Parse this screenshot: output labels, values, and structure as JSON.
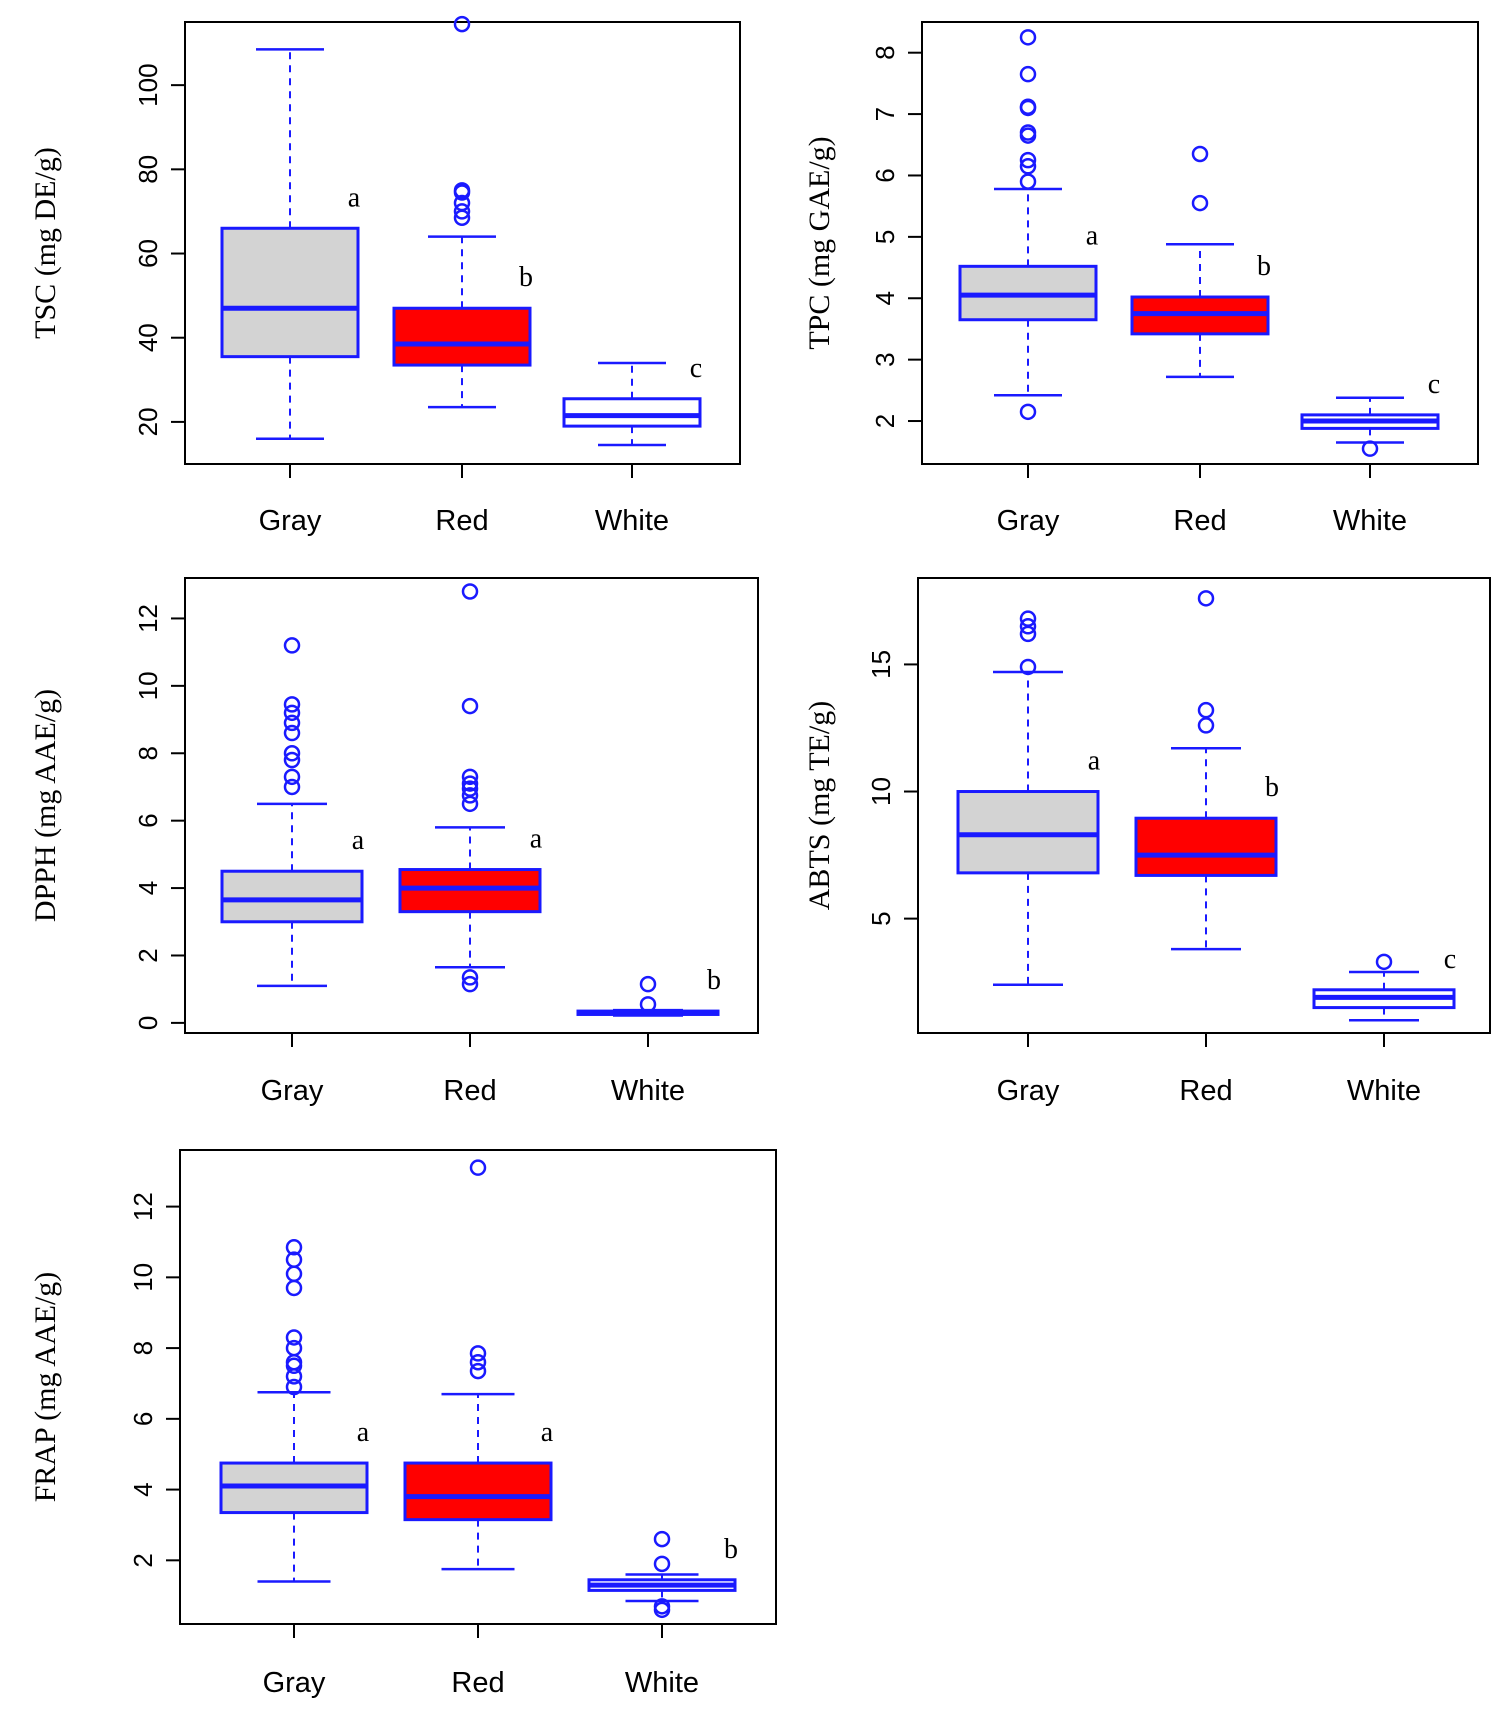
{
  "colors": {
    "stroke": "#1a1aff",
    "gray_fill": "#d3d3d3",
    "red_fill": "#ff0000",
    "white_fill": "#ffffff",
    "axis": "#000000"
  },
  "chart_data": [
    {
      "type": "box",
      "ylabel": "TSC (mg DE/g)",
      "categories": [
        "Gray",
        "Red",
        "White"
      ],
      "yticks": [
        20,
        40,
        60,
        80,
        100
      ],
      "ylim": [
        10,
        115
      ],
      "boxes": [
        {
          "category": "Gray",
          "fill": "#d3d3d3",
          "min": 16,
          "q1": 35.5,
          "median": 47,
          "q3": 66,
          "max": 108.5,
          "outliers": [],
          "letter": "a"
        },
        {
          "category": "Red",
          "fill": "#ff0000",
          "min": 23.5,
          "q1": 33.5,
          "median": 38.5,
          "q3": 47,
          "max": 64,
          "outliers": [
            68.5,
            70,
            72,
            74.5,
            75,
            114.5
          ],
          "letter": "b"
        },
        {
          "category": "White",
          "fill": "#ffffff",
          "min": 14.5,
          "q1": 19,
          "median": 21.5,
          "q3": 25.5,
          "max": 34,
          "outliers": [],
          "letter": "c"
        }
      ]
    },
    {
      "type": "box",
      "ylabel": "TPC (mg GAE/g)",
      "categories": [
        "Gray",
        "Red",
        "White"
      ],
      "yticks": [
        2,
        3,
        4,
        5,
        6,
        7,
        8
      ],
      "ylim": [
        1.3,
        8.5
      ],
      "boxes": [
        {
          "category": "Gray",
          "fill": "#d3d3d3",
          "min": 2.42,
          "q1": 3.65,
          "median": 4.05,
          "q3": 4.52,
          "max": 5.78,
          "outliers": [
            2.15,
            5.9,
            6.15,
            6.25,
            6.65,
            6.7,
            7.1,
            7.12,
            7.65,
            8.25
          ],
          "letter": "a"
        },
        {
          "category": "Red",
          "fill": "#ff0000",
          "min": 2.72,
          "q1": 3.42,
          "median": 3.75,
          "q3": 4.02,
          "max": 4.88,
          "outliers": [
            5.55,
            6.35
          ],
          "letter": "b"
        },
        {
          "category": "White",
          "fill": "#ffffff",
          "min": 1.65,
          "q1": 1.88,
          "median": 2.0,
          "q3": 2.1,
          "max": 2.38,
          "outliers": [
            1.55
          ],
          "letter": "c"
        }
      ]
    },
    {
      "type": "box",
      "ylabel": "DPPH (mg AAE/g)",
      "categories": [
        "Gray",
        "Red",
        "White"
      ],
      "yticks": [
        0,
        2,
        4,
        6,
        8,
        10,
        12
      ],
      "ylim": [
        -0.3,
        13.2
      ],
      "boxes": [
        {
          "category": "Gray",
          "fill": "#d3d3d3",
          "min": 1.1,
          "q1": 3.0,
          "median": 3.65,
          "q3": 4.5,
          "max": 6.5,
          "outliers": [
            7.0,
            7.3,
            7.8,
            8.0,
            8.6,
            8.9,
            9.2,
            9.45,
            11.2
          ],
          "letter": "a"
        },
        {
          "category": "Red",
          "fill": "#ff0000",
          "min": 1.65,
          "q1": 3.3,
          "median": 4.0,
          "q3": 4.55,
          "max": 5.8,
          "outliers": [
            1.15,
            1.35,
            6.5,
            6.75,
            6.95,
            7.1,
            7.3,
            9.4,
            12.8
          ],
          "letter": "a"
        },
        {
          "category": "White",
          "fill": "#ffffff",
          "min": 0.22,
          "q1": 0.25,
          "median": 0.3,
          "q3": 0.35,
          "max": 0.38,
          "outliers": [
            0.55,
            1.15
          ],
          "letter": "b"
        }
      ]
    },
    {
      "type": "box",
      "ylabel": "ABTS (mg TE/g)",
      "categories": [
        "Gray",
        "Red",
        "White"
      ],
      "yticks": [
        5,
        10,
        15
      ],
      "ylim": [
        0.5,
        18.4
      ],
      "boxes": [
        {
          "category": "Gray",
          "fill": "#d3d3d3",
          "min": 2.4,
          "q1": 6.8,
          "median": 8.3,
          "q3": 10.0,
          "max": 14.7,
          "outliers": [
            14.9,
            16.2,
            16.5,
            16.8
          ],
          "letter": "a"
        },
        {
          "category": "Red",
          "fill": "#ff0000",
          "min": 3.8,
          "q1": 6.7,
          "median": 7.5,
          "q3": 8.95,
          "max": 11.7,
          "outliers": [
            12.6,
            13.2,
            17.6
          ],
          "letter": "b"
        },
        {
          "category": "White",
          "fill": "#ffffff",
          "min": 1.0,
          "q1": 1.5,
          "median": 1.9,
          "q3": 2.2,
          "max": 2.9,
          "outliers": [
            3.3
          ],
          "letter": "c"
        }
      ]
    },
    {
      "type": "box",
      "ylabel": "FRAP (mg AAE/g)",
      "categories": [
        "Gray",
        "Red",
        "White"
      ],
      "yticks": [
        2,
        4,
        6,
        8,
        10,
        12
      ],
      "ylim": [
        0.2,
        13.6
      ],
      "boxes": [
        {
          "category": "Gray",
          "fill": "#d3d3d3",
          "min": 1.4,
          "q1": 3.35,
          "median": 4.1,
          "q3": 4.75,
          "max": 6.75,
          "outliers": [
            6.9,
            7.2,
            7.5,
            7.6,
            8.0,
            8.3,
            9.7,
            10.1,
            10.5,
            10.85
          ],
          "letter": "a"
        },
        {
          "category": "Red",
          "fill": "#ff0000",
          "min": 1.75,
          "q1": 3.15,
          "median": 3.8,
          "q3": 4.75,
          "max": 6.7,
          "outliers": [
            7.35,
            7.6,
            7.85,
            13.1
          ],
          "letter": "a"
        },
        {
          "category": "White",
          "fill": "#ffffff",
          "min": 0.85,
          "q1": 1.15,
          "median": 1.3,
          "q3": 1.45,
          "max": 1.6,
          "outliers": [
            0.6,
            0.7,
            1.9,
            2.6
          ],
          "letter": "b"
        }
      ]
    }
  ]
}
